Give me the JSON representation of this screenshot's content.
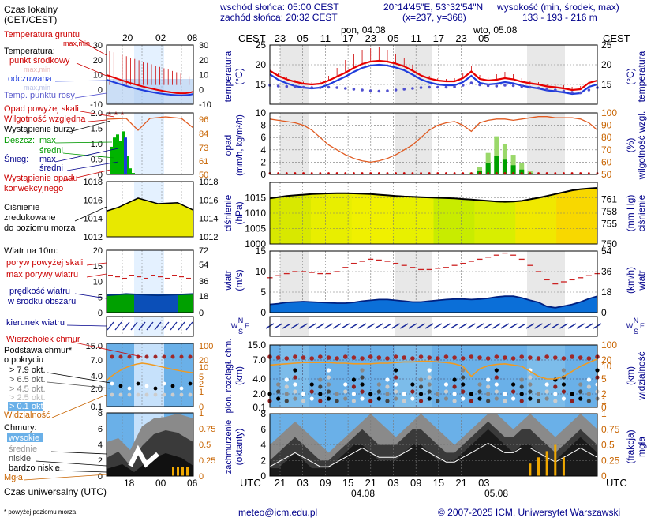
{
  "header": {
    "sunrise": "wschód słońca: 05:00 CEST",
    "sunset": "zachód słońca: 20:32 CEST",
    "coords": "20°14'45\"E, 53°32'54\"N",
    "grid": "(x=237, y=368)",
    "height_label": "wysokość (min, środek, max)",
    "height_values": "133 - 193 - 216 m"
  },
  "time_axis": {
    "cest_label": "CEST",
    "utc_label": "UTC",
    "day1": "pon, 04.08",
    "day2": "wto, 05.08",
    "date1": "04.08",
    "date2": "05.08",
    "cest_ticks": [
      "23",
      "05",
      "11",
      "17",
      "23",
      "05",
      "11",
      "17",
      "23",
      "05"
    ],
    "utc_ticks": [
      "21",
      "03",
      "09",
      "15",
      "21",
      "03",
      "09",
      "15",
      "21",
      "03"
    ]
  },
  "legend": {
    "local_time": "Czas lokalny",
    "cet": "(CET/CEST)",
    "local_ticks": [
      "20",
      "02",
      "08"
    ],
    "utc_ticks": [
      "18",
      "00",
      "06"
    ],
    "temp_ground": "Temperatura gruntu",
    "maxmin": "max,min",
    "temperature": "Temperatura:",
    "midpoint": "punkt środkowy",
    "maxmin2": "max,min",
    "felt": "odczuwana",
    "maxmin3": "max,min",
    "dewpoint": "Temp. punktu rosy",
    "precip_above": "Opad powyżej skali",
    "humidity": "Wilgotność względna",
    "storm": "Wystąpienie burzy",
    "rain": "Deszcz:",
    "rain_max": "max",
    "rain_mean": "średni",
    "snow": "Śnieg:",
    "snow_max": "max",
    "snow_mean": "średni",
    "conv": "Wystąpienie opadu",
    "conv2": "konwekcyjnego",
    "pressure": "Ciśnienie",
    "pressure2": "zredukowane",
    "pressure3": "do poziomu morza",
    "wind": "Wiatr na 10m:",
    "gust_above": "poryw powyżej skali",
    "gust": "max porywy wiatru",
    "wind_speed": "prędkość wiatru",
    "wind_area": "w środku obszaru",
    "wind_dir": "kierunek wiatru",
    "cloud_top": "Wierzchołek chmur",
    "cloud_base": "Podstawa chmur*",
    "cloud_cover": "o pokryciu",
    "okt79": "> 7.9 okt.",
    "okt65": "> 6.5 okt.",
    "okt45": "> 4.5 okt.",
    "okt25": "> 2.5 okt.",
    "okt01": "> 0.1 okt.",
    "visibility": "Widzialność",
    "clouds": "Chmury:",
    "high": "wysokie",
    "middle": "średnie",
    "low": "niskie",
    "very_low": "bardzo niskie",
    "fog": "Mgła",
    "utc_time": "Czas uniwersalny (UTC)",
    "footnote": "* powyżej poziomu morza"
  },
  "panel_labels": {
    "temp_left": "temperatura",
    "temp_unit": "(°C)",
    "temp_right_unit": "(°C)",
    "temp_right": "temperatura",
    "precip_left": "opad",
    "precip_unit": "(mm/h, kg/m²/h)",
    "hum_unit": "(%)",
    "hum_right": "wilgotność wzgl.",
    "pres_left": "ciśnienie",
    "pres_unit": "(hPa)",
    "pres_right_unit": "(mm Hg)",
    "pres_right": "ciśnienie",
    "wind_left": "wiatr",
    "wind_unit": "(m/s)",
    "wind_right_unit": "(km/h)",
    "wind_right": "wiatr",
    "cloud_left": "pion. rozciągł. chm.",
    "cloud_unit": "(km)",
    "vis_unit": "(km)",
    "vis_right": "widzialność",
    "cov_left": "zachmurzenie",
    "cov_unit": "(oktanty)",
    "fog_unit": "(frakcja)",
    "fog_right": "mgła"
  },
  "footer": {
    "email": "meteo@icm.edu.pl",
    "copyright": "© 2007-2025 ICM, Uniwersytet Warszawski"
  },
  "chart_data": [
    {
      "type": "line",
      "name": "temperature",
      "ylim": [
        10,
        25
      ],
      "y_ticks": [
        15,
        20,
        25
      ],
      "series": [
        {
          "name": "punkt środkowy",
          "values": [
            18.5,
            17.2,
            16.3,
            15.7,
            15.2,
            15.0,
            15.2,
            16.0,
            17.0,
            18.0,
            19.2,
            20.2,
            20.8,
            21.0,
            20.8,
            20.3,
            19.6,
            18.5,
            17.3,
            16.5,
            16.0,
            15.8,
            15.8,
            16.6,
            18.3,
            16.4,
            16.0,
            16.2,
            16.6,
            16.3,
            15.7,
            15.3,
            15.0,
            14.5,
            14.3,
            14.0,
            13.6,
            13.8,
            15.4,
            16.0
          ]
        },
        {
          "name": "odczuwana",
          "values": [
            17.6,
            16.2,
            15.3,
            14.6,
            14.2,
            14.0,
            14.2,
            15.0,
            16.0,
            17.0,
            18.2,
            19.2,
            19.8,
            20.0,
            19.8,
            19.3,
            18.6,
            17.5,
            16.3,
            15.5,
            15.0,
            14.8,
            14.8,
            15.6,
            17.2,
            15.4,
            15.0,
            15.2,
            15.6,
            15.3,
            14.7,
            14.3,
            14.0,
            13.5,
            13.3,
            13.0,
            12.6,
            12.8,
            14.4,
            15.0
          ]
        },
        {
          "name": "Temp. punktu rosy",
          "values": [
            14.8,
            14.6,
            14.5,
            14.4,
            14.3,
            14.2,
            14.2,
            14.3,
            14.2,
            14.0,
            13.8,
            13.6,
            13.4,
            13.3,
            13.4,
            13.6,
            13.8,
            14.0,
            14.2,
            14.3,
            14.3,
            14.3,
            14.4,
            14.8,
            15.4,
            14.9,
            14.7,
            14.6,
            14.8,
            14.7,
            14.5,
            14.3,
            14.1,
            13.8,
            13.6,
            13.3,
            13.0,
            12.9,
            13.6,
            14.2
          ]
        },
        {
          "name": "max",
          "values": [
            19.0,
            17.8,
            16.8,
            16.2,
            15.7,
            15.6,
            16.0,
            17.2,
            19.2,
            21.2,
            22.8,
            23.8,
            24.2,
            24.4,
            23.8,
            22.8,
            21.6,
            20.0,
            18.2,
            17.2,
            16.6,
            16.4,
            16.6,
            17.8,
            19.6,
            17.4,
            17.0,
            17.6,
            18.2,
            17.6,
            16.6,
            16.0,
            15.6,
            15.2,
            15.0,
            14.8,
            14.4,
            14.6,
            16.2,
            16.8
          ]
        }
      ]
    },
    {
      "type": "bar",
      "name": "precipitation",
      "ylim": [
        0,
        10
      ],
      "y_ticks": [
        0,
        2,
        4,
        6,
        8,
        10
      ],
      "y2lim": [
        50,
        100
      ],
      "y2_ticks": [
        50,
        60,
        70,
        80,
        90,
        100
      ],
      "humidity": [
        95,
        94,
        93,
        92,
        90,
        86,
        80,
        74,
        70,
        66,
        63,
        61,
        60,
        61,
        63,
        66,
        70,
        74,
        80,
        86,
        90,
        92,
        93,
        90,
        85,
        92,
        94,
        95,
        95,
        94,
        95,
        96,
        97,
        97,
        96,
        96,
        96,
        95,
        92,
        86
      ],
      "rain_max": [
        0,
        0,
        0,
        0,
        0,
        0,
        0,
        0,
        0,
        0,
        0,
        0,
        0,
        0,
        0,
        0,
        0,
        0,
        0,
        0,
        0,
        0,
        0,
        0,
        0.3,
        1.2,
        3.5,
        6.2,
        5.0,
        3.2,
        1.8,
        0.5,
        0,
        0,
        0,
        0,
        0,
        0,
        0,
        0
      ],
      "rain_mean": [
        0,
        0,
        0,
        0,
        0,
        0,
        0,
        0,
        0,
        0,
        0,
        0,
        0,
        0,
        0,
        0,
        0,
        0,
        0,
        0,
        0,
        0,
        0,
        0,
        0.1,
        0.6,
        1.8,
        3.0,
        2.4,
        1.5,
        0.8,
        0.2,
        0,
        0,
        0,
        0,
        0,
        0,
        0,
        0
      ]
    },
    {
      "type": "area",
      "name": "pressure",
      "ylim": [
        1000,
        1020
      ],
      "y_ticks": [
        1000,
        1005,
        1010,
        1015
      ],
      "y2_ticks": [
        750,
        755,
        758,
        761
      ],
      "values": [
        1014.8,
        1015.2,
        1015.6,
        1015.8,
        1016.0,
        1016.2,
        1016.3,
        1016.4,
        1016.5,
        1016.5,
        1016.4,
        1016.3,
        1016.2,
        1016.0,
        1015.8,
        1015.6,
        1015.4,
        1015.3,
        1015.2,
        1015.1,
        1015.0,
        1014.9,
        1014.8,
        1014.6,
        1014.4,
        1014.2,
        1014.0,
        1013.8,
        1013.7,
        1013.8,
        1014.0,
        1014.5,
        1015.0,
        1015.6,
        1016.2,
        1016.8,
        1017.4,
        1017.8,
        1018.0,
        1018.2
      ]
    },
    {
      "type": "line",
      "name": "wind",
      "ylim": [
        0,
        15
      ],
      "y_ticks": [
        0,
        5,
        10,
        15
      ],
      "y2_ticks": [
        0,
        18,
        36,
        54
      ],
      "speed": [
        2.0,
        2.2,
        2.5,
        2.6,
        2.7,
        2.6,
        2.5,
        2.4,
        2.3,
        2.3,
        2.5,
        2.8,
        3.0,
        3.2,
        3.2,
        3.0,
        2.8,
        2.6,
        2.6,
        2.8,
        3.0,
        3.2,
        3.3,
        3.3,
        3.2,
        3.3,
        3.5,
        3.8,
        4.0,
        4.0,
        3.6,
        3.0,
        2.5,
        1.5,
        1.2,
        1.6,
        2.0,
        2.6,
        3.4,
        4.0
      ],
      "gust": [
        8.5,
        9.0,
        9.5,
        10.0,
        10.0,
        9.8,
        9.5,
        9.5,
        10.0,
        11.0,
        12.0,
        12.5,
        13.0,
        12.8,
        12.5,
        12.0,
        11.5,
        11.0,
        10.5,
        10.5,
        10.8,
        11.0,
        11.5,
        12.0,
        12.5,
        13.0,
        13.5,
        14.0,
        14.5,
        14.0,
        13.0,
        11.5,
        10.0,
        8.0,
        7.0,
        7.5,
        8.0,
        8.5,
        9.0,
        9.5
      ]
    },
    {
      "type": "scatter",
      "name": "cloud_extent",
      "ylim": [
        0,
        15
      ],
      "y_ticks": [
        0.1,
        2.0,
        4.0,
        7.0,
        15.0
      ],
      "y2_ticks": [
        0,
        1,
        2,
        5,
        10,
        20,
        100
      ],
      "visibility": [
        12,
        13,
        14,
        15,
        16,
        16,
        16,
        16,
        15,
        15,
        14,
        14,
        14,
        15,
        15,
        16,
        17,
        17,
        18,
        18,
        17,
        16,
        14,
        10,
        6,
        9,
        11,
        13,
        14,
        12,
        10,
        8,
        6,
        5,
        5,
        6,
        8,
        10,
        16,
        25
      ]
    },
    {
      "type": "area",
      "name": "cloud_cover",
      "ylim": [
        0,
        8
      ],
      "y_ticks": [
        0,
        2,
        4,
        6,
        8
      ],
      "y2_ticks": [
        0,
        0.25,
        0.5,
        0.75,
        1
      ],
      "high": [
        4,
        5,
        6,
        7,
        6,
        5,
        4,
        3,
        4,
        5,
        6,
        7,
        8,
        7,
        6,
        5,
        6,
        7,
        8,
        7,
        6,
        5,
        4,
        5,
        6,
        7,
        8,
        8,
        7,
        6,
        7,
        8,
        7,
        6,
        5,
        6,
        7,
        8,
        7,
        6
      ],
      "middle": [
        2,
        3,
        4,
        5,
        4,
        3,
        2,
        2,
        3,
        4,
        5,
        6,
        5,
        4,
        4,
        4,
        5,
        6,
        6,
        5,
        4,
        3,
        3,
        4,
        5,
        6,
        7,
        6,
        5,
        5,
        6,
        6,
        5,
        4,
        3,
        4,
        5,
        6,
        5,
        4
      ],
      "low": [
        1,
        1,
        2,
        3,
        2,
        1,
        1,
        1,
        2,
        3,
        4,
        4,
        3,
        2,
        2,
        2,
        3,
        4,
        4,
        3,
        2,
        2,
        2,
        3,
        4,
        5,
        6,
        5,
        4,
        3,
        4,
        4,
        3,
        2,
        2,
        3,
        4,
        5,
        4,
        3
      ],
      "fog": [
        0,
        0,
        0,
        0,
        0,
        0,
        0,
        0,
        0,
        0,
        0,
        0,
        0,
        0,
        0,
        0,
        0,
        0,
        0,
        0,
        0,
        0,
        0,
        0,
        0,
        0,
        0,
        0,
        0,
        0,
        0,
        0.2,
        0.3,
        0.4,
        0.5,
        0.3,
        0,
        0,
        0,
        0
      ]
    }
  ],
  "colors": {
    "red": "#e60000",
    "blue": "#1e3cdc",
    "dew": "#5050d0",
    "rain": "#00b400",
    "humidity": "#e05a20",
    "pressure": "#e8e800",
    "wind_area": "#0b6fd8",
    "gust": "#cc2020",
    "cloud_bg": "#6ab0e8",
    "visibility": "#f09a20",
    "fog": "#f0a800"
  }
}
